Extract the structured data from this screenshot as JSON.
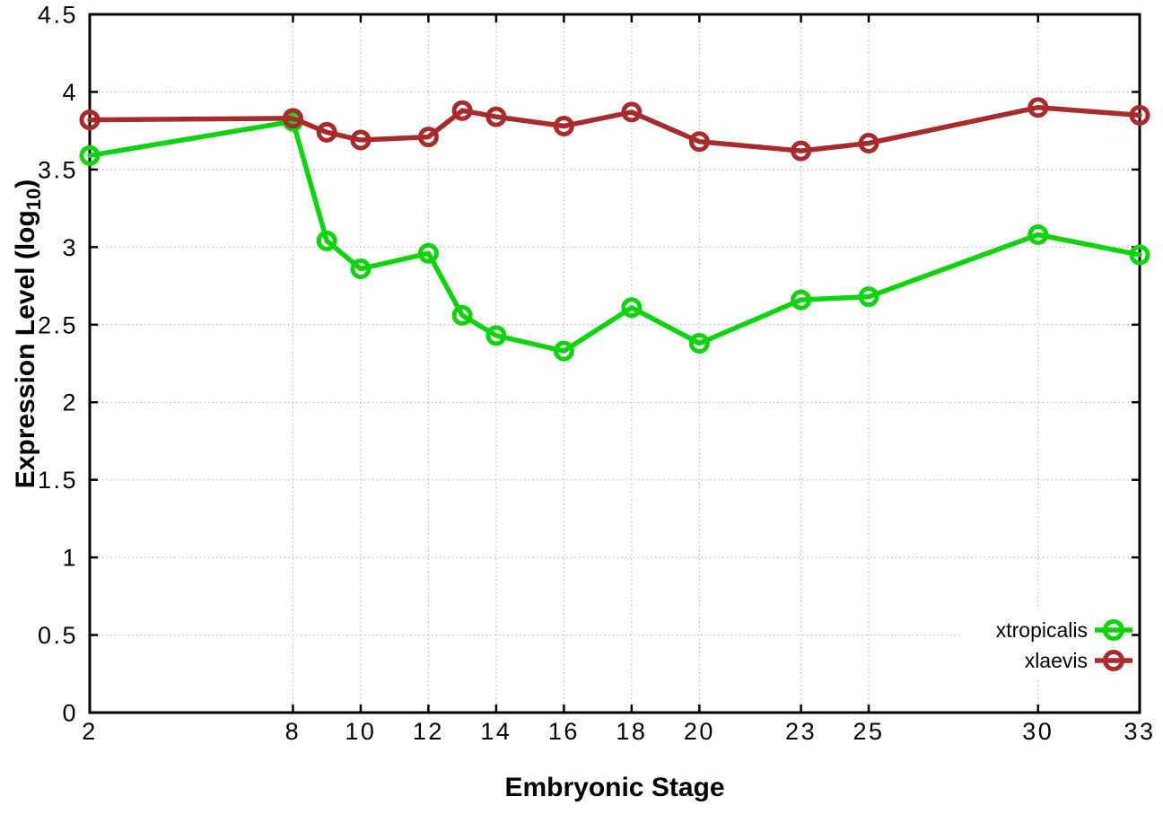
{
  "chart_data": {
    "type": "line",
    "title": "",
    "xlabel": "Embryonic Stage",
    "ylabel_prefix": "Expression Level (log",
    "ylabel_sub": "10",
    "ylabel_suffix": ")",
    "x": [
      2,
      8,
      9,
      10,
      12,
      13,
      14,
      16,
      18,
      20,
      23,
      25,
      30,
      33
    ],
    "x_ticks": [
      2,
      8,
      10,
      12,
      14,
      16,
      18,
      20,
      23,
      25,
      30,
      33
    ],
    "x_tick_labels": [
      "2",
      "8",
      "10",
      "12",
      "14",
      "16",
      "18",
      "20",
      "23",
      "25",
      "30",
      "33"
    ],
    "xlim": [
      2,
      33
    ],
    "y_ticks": [
      0,
      0.5,
      1,
      1.5,
      2,
      2.5,
      3,
      3.5,
      4,
      4.5
    ],
    "y_tick_labels": [
      "0",
      "0.5",
      "1",
      "1.5",
      "2",
      "2.5",
      "3",
      "3.5",
      "4",
      "4.5"
    ],
    "ylim": [
      0,
      4.5
    ],
    "grid": true,
    "grid_style": "dotted",
    "legend_position": "bottom-right",
    "marker": "open-circle",
    "series": [
      {
        "name": "xtropicalis",
        "color": "#0fd30f",
        "values": [
          3.59,
          3.81,
          3.04,
          2.86,
          2.96,
          2.56,
          2.43,
          2.33,
          2.61,
          2.38,
          2.66,
          2.68,
          3.08,
          2.95
        ]
      },
      {
        "name": "xlaevis",
        "color": "#a82b2b",
        "values": [
          3.82,
          3.83,
          3.74,
          3.69,
          3.71,
          3.88,
          3.84,
          3.78,
          3.87,
          3.68,
          3.62,
          3.67,
          3.9,
          3.85
        ]
      }
    ]
  },
  "colors": {
    "background": "#ffffff",
    "axis": "#000000",
    "grid": "#bcbcbc",
    "tick_text": "#000000"
  }
}
